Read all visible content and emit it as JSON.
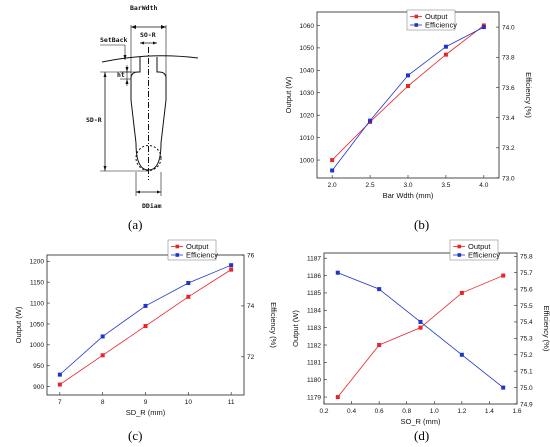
{
  "panels": {
    "a": {
      "label": "(a)"
    },
    "b": {
      "label": "(b)"
    },
    "c": {
      "label": "(c)"
    },
    "d": {
      "label": "(d)"
    }
  },
  "diagram": {
    "labels": {
      "bar_width": "BarWdth",
      "so_r": "SO-R",
      "setback": "SetBack",
      "ht": "ht",
      "sd_r": "SD-R",
      "ddiam": "DDiam"
    }
  },
  "colors": {
    "output": "#e8232a",
    "efficiency": "#1f35c9",
    "axis": "#222222"
  },
  "chart_data": [
    {
      "id": "b",
      "type": "line",
      "xlabel": "Bar Wdth (mm)",
      "ylabel": "Output (W)",
      "y2label": "Efficiency (%)",
      "x": [
        2.0,
        2.5,
        3.0,
        3.5,
        4.0
      ],
      "xlim": [
        1.8,
        4.2
      ],
      "xticks": [
        "2.0",
        "2.5",
        "3.0",
        "3.5",
        "4.0"
      ],
      "ylim": [
        992,
        1066
      ],
      "yticks": [
        "1000",
        "1010",
        "1020",
        "1030",
        "1040",
        "1050",
        "1060"
      ],
      "y2lim": [
        73.0,
        74.1
      ],
      "y2ticks": [
        "73.0",
        "73.2",
        "73.4",
        "73.6",
        "73.8",
        "74.0"
      ],
      "series": [
        {
          "name": "Output",
          "axis": "left",
          "values": [
            1000,
            1017,
            1033,
            1047,
            1060
          ]
        },
        {
          "name": "Efficiency",
          "axis": "right",
          "values": [
            73.05,
            73.38,
            73.68,
            73.87,
            74.0
          ]
        }
      ],
      "legend": "top-right"
    },
    {
      "id": "c",
      "type": "line",
      "xlabel": "SD_R (mm)",
      "ylabel": "Output (W)",
      "y2label": "Efficiency (%)",
      "x": [
        7,
        8,
        9,
        10,
        11
      ],
      "xlim": [
        6.7,
        11.3
      ],
      "xticks": [
        "7",
        "8",
        "9",
        "10",
        "11"
      ],
      "ylim": [
        880,
        1215
      ],
      "yticks": [
        "900",
        "950",
        "1000",
        "1050",
        "1100",
        "1150",
        "1200"
      ],
      "y2lim": [
        70.5,
        76.0
      ],
      "y2ticks": [
        "72",
        "74",
        "76"
      ],
      "series": [
        {
          "name": "Output",
          "axis": "left",
          "values": [
            905,
            975,
            1045,
            1115,
            1180
          ]
        },
        {
          "name": "Efficiency",
          "axis": "right",
          "values": [
            71.3,
            72.8,
            74.0,
            74.9,
            75.6
          ]
        }
      ],
      "legend": "top-left"
    },
    {
      "id": "d",
      "type": "line",
      "xlabel": "SO_R (mm)",
      "ylabel": "Output (W)",
      "y2label": "Efficiency (%)",
      "x": [
        0.3,
        0.6,
        0.9,
        1.2,
        1.5
      ],
      "xlim": [
        0.2,
        1.6
      ],
      "xticks": [
        "0.2",
        "0.4",
        "0.6",
        "0.8",
        "1.0",
        "1.2",
        "1.4",
        "1.6"
      ],
      "ylim": [
        1178.6,
        1187.3
      ],
      "yticks": [
        "1179",
        "1180",
        "1181",
        "1182",
        "1183",
        "1184",
        "1185",
        "1186",
        "1187"
      ],
      "y2lim": [
        74.9,
        75.82
      ],
      "y2ticks": [
        "74.9",
        "75.0",
        "75.1",
        "75.2",
        "75.3",
        "75.4",
        "75.5",
        "75.6",
        "75.7",
        "75.8"
      ],
      "series": [
        {
          "name": "Output",
          "axis": "left",
          "values": [
            1179,
            1182,
            1183,
            1185,
            1186
          ]
        },
        {
          "name": "Efficiency",
          "axis": "right",
          "values": [
            75.7,
            75.6,
            75.4,
            75.2,
            75.0
          ]
        }
      ],
      "legend": "top-center"
    }
  ]
}
